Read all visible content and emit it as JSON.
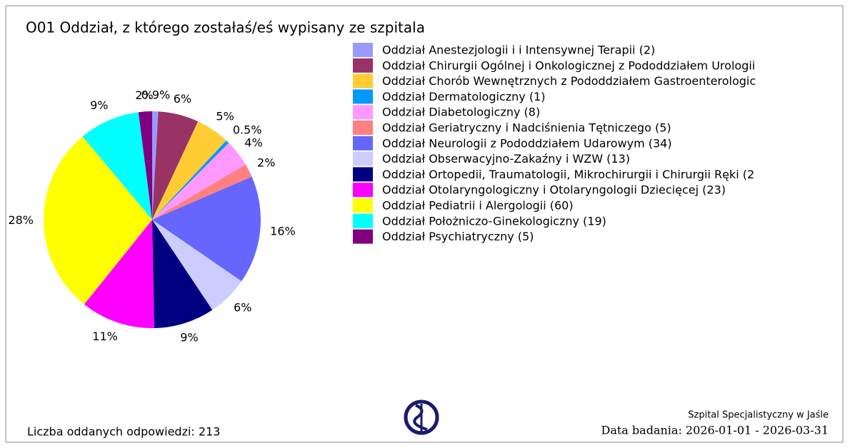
{
  "chart_data": {
    "type": "pie",
    "title": "O01 Oddział, z którego zostałaś/eś wypisany ze szpitala",
    "categories": [
      "Oddział Anestezjologii i i Intensywnej Terapii (2)",
      "Oddział Chirurgii Ogólnej i Onkologicznej z Pododdziałem Urologii",
      "Oddział Chorób Wewnętrznych z Pododdziałem Gastroenterologic",
      "Oddział Dermatologiczny (1)",
      "Oddział Diabetologiczny (8)",
      "Oddział Geriatryczny i Nadciśnienia Tętniczego (5)",
      "Oddział Neurologii z Pododdziałem Udarowym (34)",
      "Oddział Obserwacyjno-Zakaźny i WZW (13)",
      "Oddział Ortopedii, Traumatologii, Mikrochirurgii i Chirurgii Ręki (2",
      "Oddział Otolaryngologiczny i Otolaryngologii Dziecięcej (23)",
      "Oddział Pediatrii i Alergologii (60)",
      "Oddział Położniczo-Ginekologiczny (19)",
      "Oddział Psychiatryczny (5)"
    ],
    "values": [
      0.9,
      6,
      5,
      0.5,
      4,
      2,
      16,
      6,
      9,
      11,
      28,
      9,
      2
    ],
    "value_labels": [
      "0.9%",
      "6%",
      "5%",
      "0.5%",
      "4%",
      "2%",
      "16%",
      "6%",
      "9%",
      "11%",
      "28%",
      "9%",
      "2%"
    ],
    "colors": [
      "#9999ff",
      "#993366",
      "#ffcc33",
      "#0099ff",
      "#ff99ff",
      "#ff8080",
      "#6666ff",
      "#ccccff",
      "#000080",
      "#ff00ff",
      "#ffff00",
      "#00ffff",
      "#800080"
    ],
    "legend": "right"
  },
  "footer": {
    "responses": "Liczba oddanych odpowiedzi: 213",
    "hospital": "Szpital Specjalistyczny w Jaśle",
    "date": "Data badania: 2026-01-01 - 2026-03-31"
  }
}
